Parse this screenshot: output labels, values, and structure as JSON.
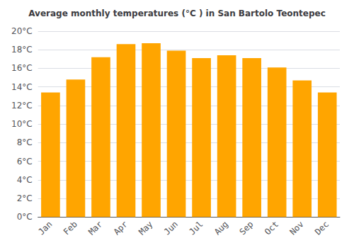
{
  "chart_data": {
    "type": "bar",
    "title": "Average monthly temperatures (°C ) in San Bartolo Teontepec",
    "categories": [
      "Jan",
      "Feb",
      "Mar",
      "Apr",
      "May",
      "Jun",
      "Jul",
      "Aug",
      "Sep",
      "Oct",
      "Nov",
      "Dec"
    ],
    "values": [
      13.4,
      14.8,
      17.2,
      18.6,
      18.7,
      17.9,
      17.1,
      17.4,
      17.1,
      16.1,
      14.7,
      13.4
    ],
    "color": "#FFA500",
    "ylim": [
      0,
      20
    ],
    "yticks": [
      {
        "value": 0,
        "label": "0°C"
      },
      {
        "value": 2,
        "label": "2°C"
      },
      {
        "value": 4,
        "label": "4°C"
      },
      {
        "value": 6,
        "label": "6°C"
      },
      {
        "value": 8,
        "label": "8°C"
      },
      {
        "value": 10,
        "label": "10°C"
      },
      {
        "value": 12,
        "label": "12°C"
      },
      {
        "value": 14,
        "label": "14°C"
      },
      {
        "value": 16,
        "label": "16°C"
      },
      {
        "value": 18,
        "label": "18°C"
      },
      {
        "value": 20,
        "label": "20°C"
      }
    ],
    "grid": true
  }
}
